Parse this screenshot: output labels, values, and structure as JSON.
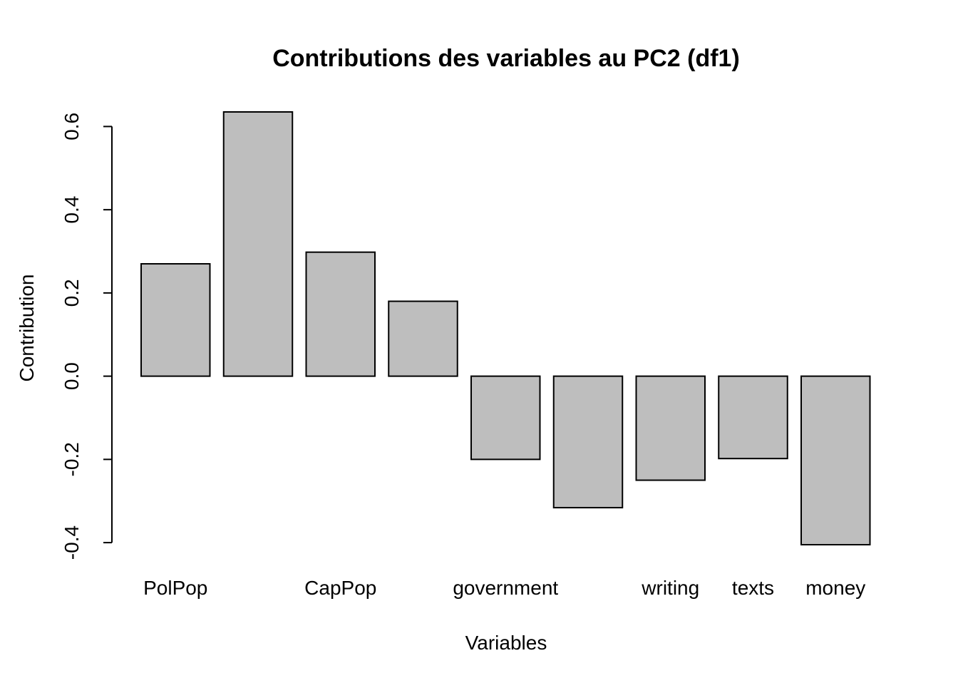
{
  "chart_data": {
    "type": "bar",
    "title": "Contributions des variables au PC2 (df1)",
    "xlabel": "Variables",
    "ylabel": "Contribution",
    "categories": [
      "PolPop",
      "",
      "CapPop",
      "",
      "government",
      "",
      "writing",
      "texts",
      "money"
    ],
    "values": [
      0.27,
      0.635,
      0.298,
      0.18,
      -0.2,
      -0.316,
      -0.25,
      -0.198,
      -0.405
    ],
    "y_ticks": [
      -0.4,
      -0.2,
      0.0,
      0.2,
      0.4,
      0.6
    ],
    "y_tick_labels": [
      "-0.4",
      "-0.2",
      "0.0",
      "0.2",
      "0.4",
      "0.6"
    ],
    "ylim": [
      -0.405,
      0.635
    ],
    "grid": false,
    "legend": "none"
  },
  "colors": {
    "bar_fill": "#bebebe",
    "bar_stroke": "#000000",
    "background": "#ffffff"
  }
}
